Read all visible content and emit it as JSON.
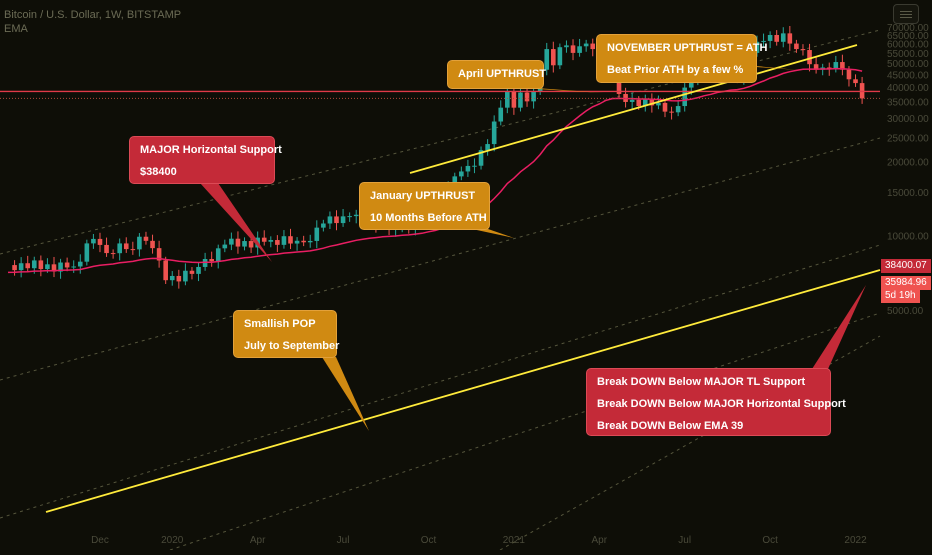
{
  "header": {
    "title": "Bitcoin / U.S. Dollar, 1W, BITSTAMP",
    "sub": "EMA"
  },
  "colors": {
    "background": "#0e0e07",
    "up": "#26a69a",
    "down": "#ef5350",
    "ema": "#e91e63",
    "trendline": "#ffeb3b",
    "support": "#e03a48",
    "callout_orange": "#d08a12",
    "callout_red": "#c42a38"
  },
  "price_tags": {
    "support": "38400.07",
    "last": "35984.96",
    "countdown": "5d 19h"
  },
  "callouts": {
    "april": "April UPTHRUST",
    "november_1": "NOVEMBER UPTHRUST = ATH",
    "november_2": "Beat Prior ATH by a few %",
    "major_1": "MAJOR Horizontal Support",
    "major_2": "$38400",
    "january_1": "January UPTHRUST",
    "january_2": "10 Months Before ATH",
    "pop_1": "Smallish POP",
    "pop_2": "July to September",
    "break_1": "Break DOWN Below MAJOR TL Support",
    "break_2": "Break DOWN Below MAJOR Horizontal Support",
    "break_3": "Break DOWN Below EMA 39"
  },
  "chart_data": {
    "type": "candlestick",
    "title": "Bitcoin / U.S. Dollar, 1W, BITSTAMP",
    "ylim": [
      1500,
      72000
    ],
    "y_ticks": [
      5000,
      10000,
      15000,
      20000,
      25000,
      30000,
      35000,
      40000,
      45000,
      50000,
      55000,
      60000,
      65000,
      70000
    ],
    "y_tick_labels": [
      "5000.00",
      "10000.00",
      "15000.00",
      "20000.00",
      "25000.00",
      "30000.00",
      "35000.00",
      "40000.00",
      "45000.00",
      "50000.00",
      "55000.00",
      "60000.00",
      "65000.00",
      "70000.00"
    ],
    "x_tick_labels": [
      "Dec",
      "2020",
      "Apr",
      "Jul",
      "Oct",
      "2021",
      "Apr",
      "Jul",
      "Oct",
      "2022"
    ],
    "horizontal_support": 38400,
    "last_price": 35984.96,
    "ema_period": 39,
    "anchors": [
      {
        "w": 0,
        "p": 7600
      },
      {
        "w": 10,
        "p": 7500
      },
      {
        "w": 13,
        "p": 9700
      },
      {
        "w": 15,
        "p": 8500
      },
      {
        "w": 17,
        "p": 9300
      },
      {
        "w": 19,
        "p": 8800
      },
      {
        "w": 20,
        "p": 9900
      },
      {
        "w": 22,
        "p": 8900
      },
      {
        "w": 24,
        "p": 6600
      },
      {
        "w": 28,
        "p": 7000
      },
      {
        "w": 33,
        "p": 9200
      },
      {
        "w": 40,
        "p": 9600
      },
      {
        "w": 45,
        "p": 9400
      },
      {
        "w": 48,
        "p": 11200
      },
      {
        "w": 52,
        "p": 12000
      },
      {
        "w": 56,
        "p": 11000
      },
      {
        "w": 59,
        "p": 10700
      },
      {
        "w": 62,
        "p": 11500
      },
      {
        "w": 65,
        "p": 13000
      },
      {
        "w": 67,
        "p": 15500
      },
      {
        "w": 69,
        "p": 18200
      },
      {
        "w": 71,
        "p": 19200
      },
      {
        "w": 73,
        "p": 23500
      },
      {
        "w": 74,
        "p": 29000
      },
      {
        "w": 75,
        "p": 33000
      },
      {
        "w": 76,
        "p": 38500
      },
      {
        "w": 77,
        "p": 33000
      },
      {
        "w": 78,
        "p": 38000
      },
      {
        "w": 79,
        "p": 35000
      },
      {
        "w": 80,
        "p": 38500
      },
      {
        "w": 81,
        "p": 47000
      },
      {
        "w": 82,
        "p": 57000
      },
      {
        "w": 83,
        "p": 49000
      },
      {
        "w": 84,
        "p": 58000
      },
      {
        "w": 85,
        "p": 59000
      },
      {
        "w": 86,
        "p": 55000
      },
      {
        "w": 87,
        "p": 58500
      },
      {
        "w": 88,
        "p": 60000
      },
      {
        "w": 89,
        "p": 57000
      },
      {
        "w": 90,
        "p": 50500
      },
      {
        "w": 91,
        "p": 57800
      },
      {
        "w": 92,
        "p": 47000
      },
      {
        "w": 93,
        "p": 37500
      },
      {
        "w": 94,
        "p": 34800
      },
      {
        "w": 95,
        "p": 35500
      },
      {
        "w": 96,
        "p": 33500
      },
      {
        "w": 97,
        "p": 35600
      },
      {
        "w": 98,
        "p": 33700
      },
      {
        "w": 99,
        "p": 34500
      },
      {
        "w": 100,
        "p": 31800
      },
      {
        "w": 101,
        "p": 31600
      },
      {
        "w": 102,
        "p": 33500
      },
      {
        "w": 103,
        "p": 39800
      },
      {
        "w": 104,
        "p": 42200
      },
      {
        "w": 105,
        "p": 46000
      },
      {
        "w": 106,
        "p": 49200
      },
      {
        "w": 107,
        "p": 47000
      },
      {
        "w": 108,
        "p": 51000
      },
      {
        "w": 109,
        "p": 45000
      },
      {
        "w": 110,
        "p": 47500
      },
      {
        "w": 111,
        "p": 43000
      },
      {
        "w": 112,
        "p": 48000
      },
      {
        "w": 113,
        "p": 55000
      },
      {
        "w": 114,
        "p": 61000
      },
      {
        "w": 115,
        "p": 61500
      },
      {
        "w": 116,
        "p": 65000
      },
      {
        "w": 117,
        "p": 61000
      },
      {
        "w": 118,
        "p": 66000
      },
      {
        "w": 119,
        "p": 60000
      },
      {
        "w": 120,
        "p": 57000
      },
      {
        "w": 121,
        "p": 56500
      },
      {
        "w": 122,
        "p": 49500
      },
      {
        "w": 123,
        "p": 47000
      },
      {
        "w": 124,
        "p": 48000
      },
      {
        "w": 125,
        "p": 47500
      },
      {
        "w": 126,
        "p": 50500
      },
      {
        "w": 127,
        "p": 47000
      },
      {
        "w": 128,
        "p": 43000
      },
      {
        "w": 129,
        "p": 41500
      },
      {
        "w": 130,
        "p": 35980
      }
    ]
  }
}
